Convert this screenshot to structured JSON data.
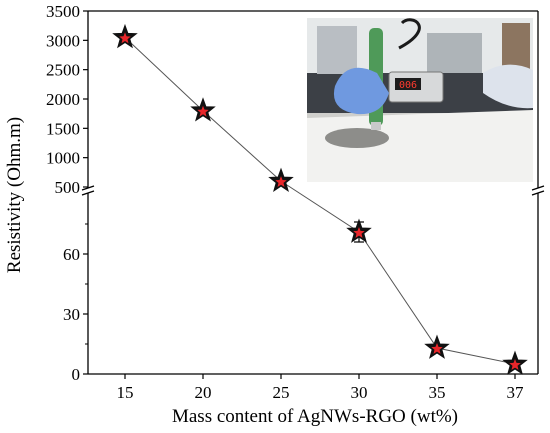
{
  "chart_data": {
    "type": "scatter",
    "xlabel": "Mass content of AgNWs-RGO (wt%)",
    "ylabel": "Resistivity (Ohm.m)",
    "x_categories": [
      "15",
      "20",
      "25",
      "30",
      "35",
      "37"
    ],
    "y_scale": "broken",
    "y_lower_range": [
      0,
      80
    ],
    "y_upper_range": [
      500,
      3500
    ],
    "y_ticks_lower": [
      0,
      30,
      60
    ],
    "y_ticks_upper": [
      500,
      1000,
      1500,
      2000,
      2500,
      3000,
      3500
    ],
    "grid": false,
    "series": [
      {
        "x": [
          "15",
          "20",
          "25",
          "30",
          "35",
          "37"
        ],
        "y": [
          3050,
          1800,
          600,
          71,
          13,
          5
        ],
        "y_err": [
          0,
          0,
          0,
          5,
          0,
          0
        ],
        "marker": "star",
        "marker_fill": "#e8262a",
        "marker_outline": "#111111",
        "line_color": "#555555"
      }
    ],
    "inset": {
      "content": "photo of resistivity meter probe on film",
      "display_reading": "006"
    }
  }
}
